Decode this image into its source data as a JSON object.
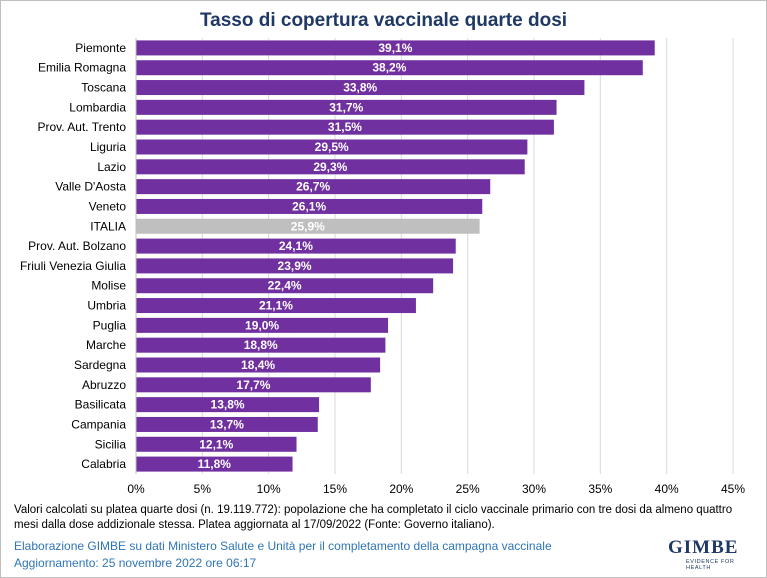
{
  "chart_data": {
    "type": "bar",
    "orientation": "horizontal",
    "title": "Tasso di copertura vaccinale quarte dosi",
    "categories": [
      "Piemonte",
      "Emilia Romagna",
      "Toscana",
      "Lombardia",
      "Prov. Aut. Trento",
      "Liguria",
      "Lazio",
      "Valle D'Aosta",
      "Veneto",
      "ITALIA",
      "Prov. Aut. Bolzano",
      "Friuli Venezia Giulia",
      "Molise",
      "Umbria",
      "Puglia",
      "Marche",
      "Sardegna",
      "Abruzzo",
      "Basilicata",
      "Campania",
      "Sicilia",
      "Calabria"
    ],
    "values": [
      39.1,
      38.2,
      33.8,
      31.7,
      31.5,
      29.5,
      29.3,
      26.7,
      26.1,
      25.9,
      24.1,
      23.9,
      22.4,
      21.1,
      19.0,
      18.8,
      18.4,
      17.7,
      13.8,
      13.7,
      12.1,
      11.8
    ],
    "value_labels": [
      "39,1%",
      "38,2%",
      "33,8%",
      "31,7%",
      "31,5%",
      "29,5%",
      "29,3%",
      "26,7%",
      "26,1%",
      "25,9%",
      "24,1%",
      "23,9%",
      "22,4%",
      "21,1%",
      "19,0%",
      "18,8%",
      "18,4%",
      "17,7%",
      "13,8%",
      "13,7%",
      "12,1%",
      "11,8%"
    ],
    "xlim": [
      0,
      45
    ],
    "xticks": [
      0,
      5,
      10,
      15,
      20,
      25,
      30,
      35,
      40,
      45
    ],
    "xtick_labels": [
      "0%",
      "5%",
      "10%",
      "15%",
      "20%",
      "25%",
      "30%",
      "35%",
      "40%",
      "45%"
    ],
    "grid": "vertical",
    "bar_color": "#7030a0",
    "highlight_category": "ITALIA",
    "highlight_color": "#bfbfbf"
  },
  "note": "Valori calcolati su platea quarte dosi (n. 19.119.772): popolazione che ha completato il ciclo vaccinale primario con tre dosi da almeno quattro mesi dalla dose addizionale stessa. Platea aggiornata al 17/09/2022 (Fonte: Governo italiano).",
  "footer": {
    "source": "Elaborazione GIMBE su dati Ministero Salute e Unità per il completamento della campagna vaccinale",
    "updated": "Aggiornamento: 25 novembre 2022 ore 06:17"
  },
  "logo": {
    "name": "GIMBE",
    "tagline": "EVIDENCE FOR HEALTH"
  },
  "colors": {
    "title": "#1f3864",
    "footer": "#2e75b6"
  }
}
